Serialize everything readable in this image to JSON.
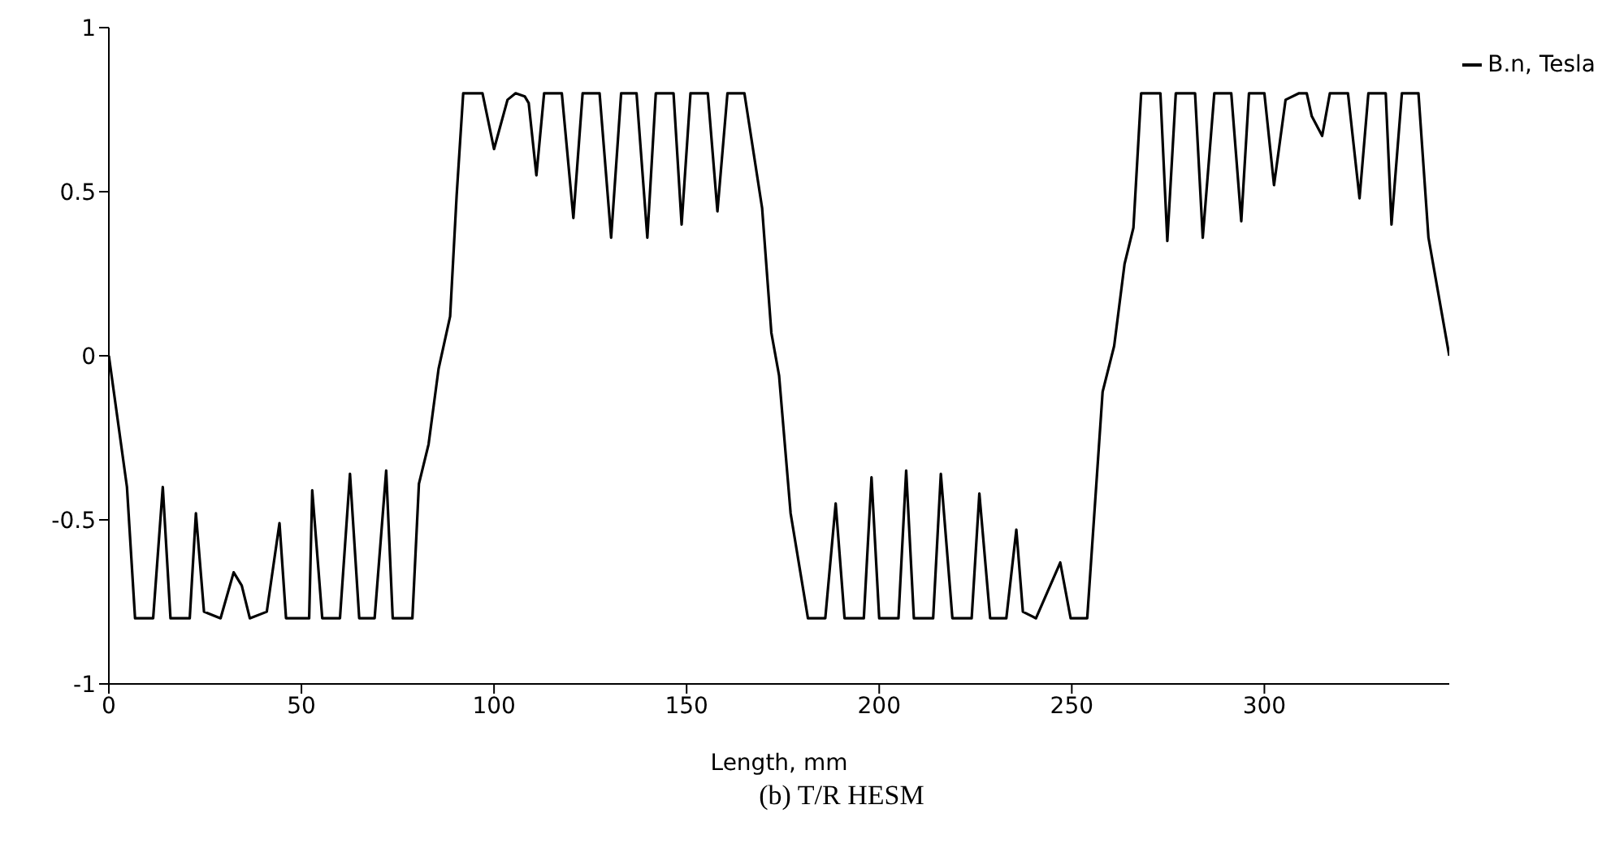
{
  "chart_data": {
    "type": "line",
    "title": "(b)  T/R HESM",
    "xlabel": "Length, mm",
    "xlim": [
      0,
      348
    ],
    "xticks": [
      0,
      50,
      100,
      150,
      200,
      250,
      300
    ],
    "ylim": [
      -1,
      1
    ],
    "yticks": [
      -1,
      -0.5,
      0,
      0.5,
      1
    ],
    "grid": false,
    "legend": "top right",
    "marker": "none",
    "line_style": "solid",
    "series": [
      {
        "name": "B.n, Tesla",
        "color": "#000000",
        "x": [
          0,
          4.7,
          6.8,
          11.5,
          14,
          16,
          21,
          22.6,
          24.7,
          29,
          32.4,
          34.5,
          36.6,
          41,
          44.3,
          46,
          52,
          52.8,
          55.4,
          60,
          62.6,
          65,
          69,
          72,
          73.7,
          78.8,
          80.5,
          83,
          85.6,
          88.6,
          90.3,
          92,
          97,
          100,
          103.5,
          105.6,
          108,
          109,
          111,
          113,
          117.6,
          120.6,
          123,
          127.4,
          130.4,
          133,
          137,
          139.8,
          142,
          146.6,
          148.7,
          151,
          155.5,
          158,
          160.6,
          165,
          169.6,
          172,
          174,
          177,
          181.5,
          186,
          188.7,
          191,
          196,
          198,
          200,
          205,
          207,
          209,
          214,
          216,
          219,
          224,
          226,
          228.8,
          233,
          235.6,
          237.3,
          240.7,
          247,
          249.7,
          254,
          258,
          261,
          263.7,
          266,
          268,
          273,
          274.8,
          277,
          282,
          284,
          287,
          291.4,
          294,
          296,
          300,
          302.5,
          305.5,
          309,
          311,
          312.3,
          315,
          317,
          321.7,
          324.7,
          327,
          331.5,
          333,
          335.7,
          340,
          342.6,
          348
        ],
        "values": [
          0,
          -0.4,
          -0.8,
          -0.8,
          -0.4,
          -0.8,
          -0.8,
          -0.48,
          -0.78,
          -0.8,
          -0.66,
          -0.7,
          -0.8,
          -0.78,
          -0.51,
          -0.8,
          -0.8,
          -0.41,
          -0.8,
          -0.8,
          -0.36,
          -0.8,
          -0.8,
          -0.35,
          -0.8,
          -0.8,
          -0.39,
          -0.27,
          -0.04,
          0.12,
          0.49,
          0.8,
          0.8,
          0.63,
          0.78,
          0.8,
          0.79,
          0.77,
          0.55,
          0.8,
          0.8,
          0.42,
          0.8,
          0.8,
          0.36,
          0.8,
          0.8,
          0.36,
          0.8,
          0.8,
          0.4,
          0.8,
          0.8,
          0.44,
          0.8,
          0.8,
          0.45,
          0.07,
          -0.06,
          -0.48,
          -0.8,
          -0.8,
          -0.45,
          -0.8,
          -0.8,
          -0.37,
          -0.8,
          -0.8,
          -0.35,
          -0.8,
          -0.8,
          -0.36,
          -0.8,
          -0.8,
          -0.42,
          -0.8,
          -0.8,
          -0.53,
          -0.78,
          -0.8,
          -0.63,
          -0.8,
          -0.8,
          -0.11,
          0.03,
          0.28,
          0.39,
          0.8,
          0.8,
          0.35,
          0.8,
          0.8,
          0.36,
          0.8,
          0.8,
          0.41,
          0.8,
          0.8,
          0.52,
          0.78,
          0.8,
          0.8,
          0.73,
          0.67,
          0.8,
          0.8,
          0.48,
          0.8,
          0.8,
          0.4,
          0.8,
          0.8,
          0.36,
          0
        ]
      }
    ]
  }
}
